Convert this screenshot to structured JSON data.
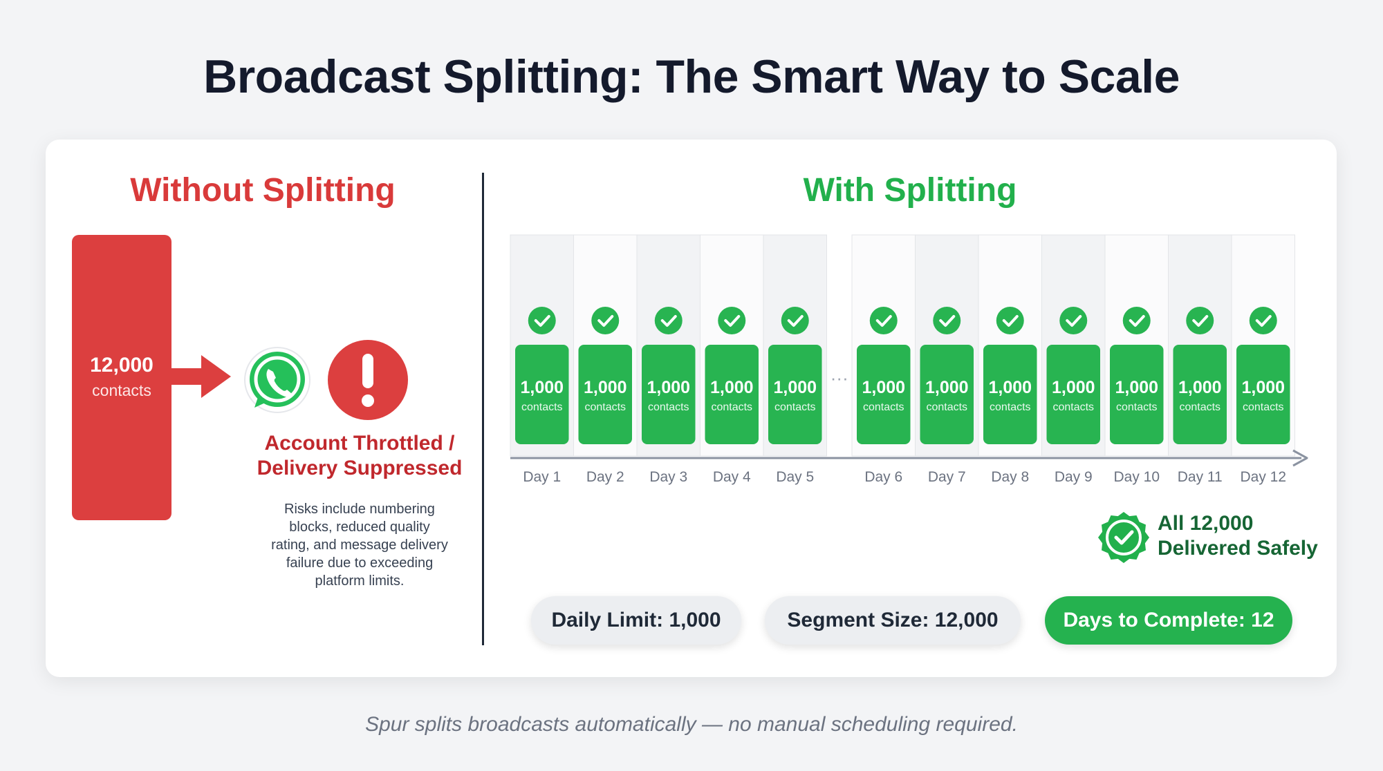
{
  "title": "Broadcast Splitting: The Smart Way to Scale",
  "without": {
    "heading": "Without Splitting",
    "block_value": "12,000",
    "block_label": "contacts",
    "warning_title_line1": "Account Throttled /",
    "warning_title_line2": "Delivery Suppressed",
    "warning_lines": [
      "Risks include numbering",
      "blocks, reduced quality",
      "rating, and message delivery",
      "failure due to exceeding",
      "platform limits."
    ],
    "icons": [
      "arrow-right-icon",
      "whatsapp-icon",
      "exclamation-icon"
    ],
    "color": "#dc3f3f"
  },
  "with": {
    "heading": "With Splitting",
    "ellipsis": "···",
    "color": "#22b04c"
  },
  "chart_data": {
    "type": "bar",
    "categories": [
      "Day 1",
      "Day 2",
      "Day 3",
      "Day 4",
      "Day 5",
      "Day 6",
      "Day 7",
      "Day 8",
      "Day 9",
      "Day 10",
      "Day 11",
      "Day 12"
    ],
    "values": [
      1000,
      1000,
      1000,
      1000,
      1000,
      1000,
      1000,
      1000,
      1000,
      1000,
      1000,
      1000
    ],
    "value_labels": [
      "1,000",
      "1,000",
      "1,000",
      "1,000",
      "1,000",
      "1,000",
      "1,000",
      "1,000",
      "1,000",
      "1,000",
      "1,000",
      "1,000"
    ],
    "unit_label": "contacts",
    "title": "",
    "xlabel": "",
    "ylabel": ""
  },
  "summary": {
    "line1": "All 12,000",
    "line2": "Delivered Safely"
  },
  "stats": {
    "daily_limit": "Daily Limit: 1,000",
    "segment_size": "Segment Size: 12,000",
    "days_to_complete": "Days to Complete: 12"
  },
  "footer": "Spur splits broadcasts automatically — no manual scheduling required."
}
